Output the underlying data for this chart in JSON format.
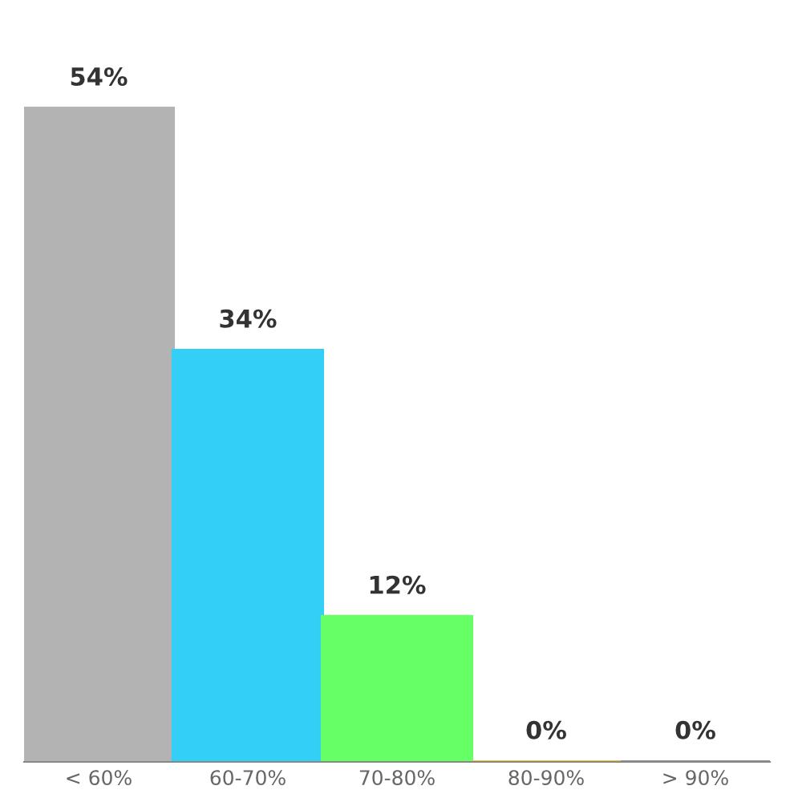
{
  "chart_data": {
    "type": "bar",
    "categories": [
      "< 60%",
      "60-70%",
      "70-80%",
      "80-90%",
      "> 90%"
    ],
    "values": [
      54,
      34,
      12,
      0,
      0
    ],
    "colors": [
      "#b3b3b3",
      "#33cff7",
      "#66ff66",
      "#f5c231",
      "#8f8f8f"
    ],
    "value_labels": [
      "54%",
      "34%",
      "12%",
      "0%",
      "0%"
    ],
    "grid": false,
    "legend": false
  }
}
